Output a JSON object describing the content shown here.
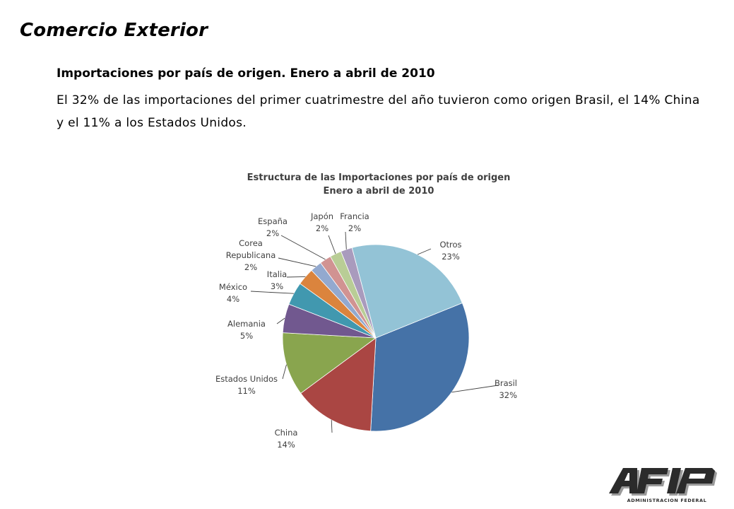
{
  "page": {
    "title": "Comercio Exterior",
    "subtitle": "Importaciones por país de origen. Enero a abril de 2010",
    "description": "El 32% de las importaciones del primer cuatrimestre del año tuvieron como origen Brasil, el 14% China y el 11% a los Estados Unidos."
  },
  "logo": {
    "text": "AFIP",
    "caption": "ADMINISTRACION FEDERAL",
    "colors": {
      "ink": "#2b2b2b",
      "shadow": "#9a9a9a"
    }
  },
  "chart_data": {
    "type": "pie",
    "title": "Estructura de las Importaciones por país de origen",
    "subtitle": "Enero a abril de 2010",
    "legend": "none",
    "start_angle_deg": 68,
    "direction": "clockwise",
    "slices": [
      {
        "name": "Brasil",
        "value": 32,
        "label": "32%",
        "color": "#4572A7"
      },
      {
        "name": "China",
        "value": 14,
        "label": "14%",
        "color": "#AA4643"
      },
      {
        "name": "Estados Unidos",
        "value": 11,
        "label": "11%",
        "color": "#89A54E"
      },
      {
        "name": "Alemania",
        "value": 5,
        "label": "5%",
        "color": "#71588F"
      },
      {
        "name": "México",
        "value": 4,
        "label": "4%",
        "color": "#4198AF"
      },
      {
        "name": "Italia",
        "value": 3,
        "label": "3%",
        "color": "#DB843D"
      },
      {
        "name": "Corea Republicana",
        "value": 2,
        "label": "2%",
        "color": "#93A9CF"
      },
      {
        "name": "España",
        "value": 2,
        "label": "2%",
        "color": "#D19392"
      },
      {
        "name": "Japón",
        "value": 2,
        "label": "2%",
        "color": "#B9CD96"
      },
      {
        "name": "Francia",
        "value": 2,
        "label": "2%",
        "color": "#A99BBD"
      },
      {
        "name": "Otros",
        "value": 23,
        "label": "23%",
        "color": "#93C3D6"
      }
    ]
  }
}
